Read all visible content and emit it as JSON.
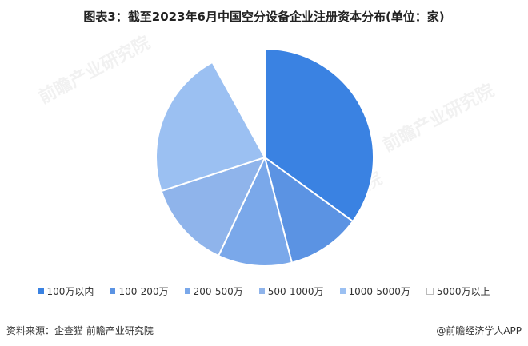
{
  "chart_data": {
    "type": "pie",
    "title": "图表3：截至2023年6月中国空分设备企业注册资本分布(单位：家)",
    "categories": [
      "100万以内",
      "100-200万",
      "200-500万",
      "500-1000万",
      "1000-5000万",
      "5000万以上"
    ],
    "values": [
      35,
      11,
      11,
      13,
      22,
      8
    ],
    "colors": [
      "#3a82e2",
      "#5b93e3",
      "#7aa8ea",
      "#8fb4eb",
      "#9bc0f2",
      "#ffffff"
    ],
    "legend_position": "bottom",
    "start_angle": "top, clockwise"
  },
  "watermark": {
    "text": "前瞻产业研究院"
  },
  "footer": {
    "source": "资料来源：企查猫 前瞻产业研究院",
    "credit": "@前瞻经济学人APP"
  }
}
